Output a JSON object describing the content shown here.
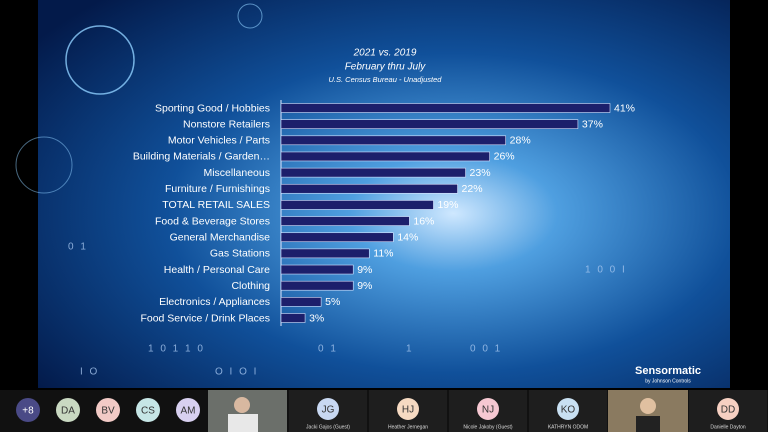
{
  "chart_data": {
    "type": "bar",
    "orientation": "horizontal",
    "title": "2021 vs. 2019",
    "subtitle": "February thru July",
    "source": "U.S. Census Bureau - Unadjusted",
    "categories": [
      "Sporting Good / Hobbies",
      "Nonstore Retailers",
      "Motor Vehicles / Parts",
      "Building Materials / Garden…",
      "Miscellaneous",
      "Furniture / Furnishings",
      "TOTAL RETAIL SALES",
      "Food & Beverage Stores",
      "General Merchandise",
      "Gas Stations",
      "Health / Personal Care",
      "Clothing",
      "Electronics / Appliances",
      "Food Service / Drink Places"
    ],
    "values": [
      41,
      37,
      28,
      26,
      23,
      22,
      19,
      16,
      14,
      11,
      9,
      9,
      5,
      3
    ],
    "value_labels": [
      "41%",
      "37%",
      "28%",
      "26%",
      "23%",
      "22%",
      "19%",
      "16%",
      "14%",
      "11%",
      "9%",
      "9%",
      "5%",
      "3%"
    ],
    "color": "#1c1f6b"
  },
  "slide": {
    "logo": "Sensormatic",
    "logo_sub": "by Johnson Controls",
    "decor": [
      "1 0 1 1 0",
      "0 1",
      "1",
      "0 0 1",
      "I   O",
      "O I O I",
      "1 0 0     I",
      "0 1"
    ]
  },
  "participants": {
    "overflow": "+8",
    "avatars": [
      {
        "initials": "DA",
        "color": "#c9d9c2"
      },
      {
        "initials": "BV",
        "color": "#f2cac6"
      },
      {
        "initials": "CS",
        "color": "#c6e6e6"
      },
      {
        "initials": "AM",
        "color": "#d8d0f0"
      }
    ],
    "tiles": [
      {
        "initials": "JG",
        "name": "Jacki Gajos (Guest)",
        "color": "#c8d8f2"
      },
      {
        "initials": "HJ",
        "name": "Heather Jernegan",
        "color": "#f6dac2"
      },
      {
        "initials": "NJ",
        "name": "Nicole Jakoby (Guest)",
        "color": "#f6c8d2"
      },
      {
        "initials": "KO",
        "name": "KATHRYN ODOM",
        "color": "#c8e0f2"
      },
      {
        "initials": "DD",
        "name": "Danielle Dayton",
        "color": "#f6d0c2"
      }
    ]
  }
}
